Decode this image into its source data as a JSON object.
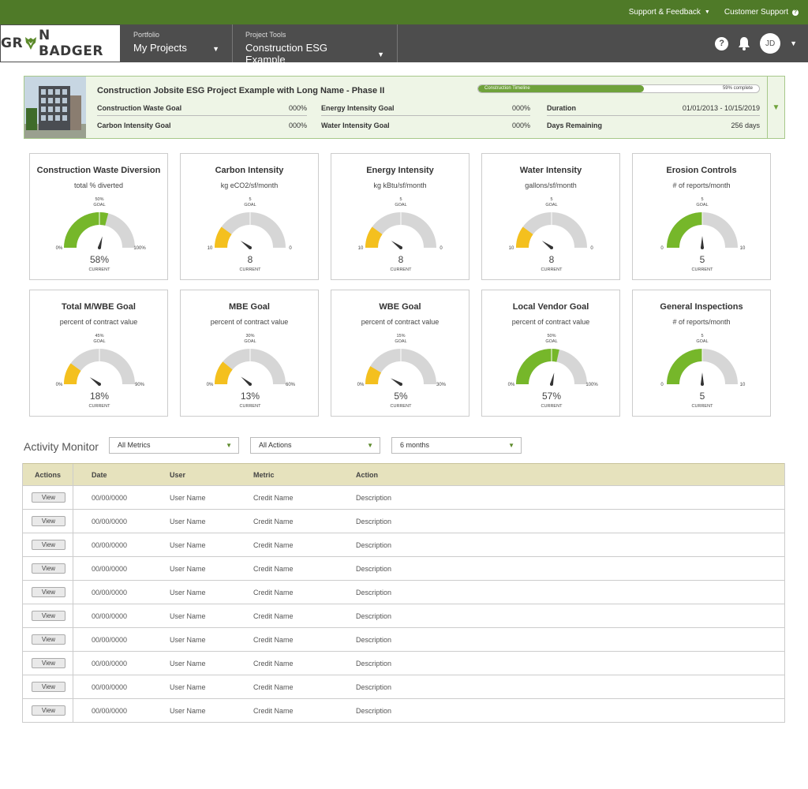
{
  "topbar": {
    "support_feedback": "Support & Feedback",
    "customer_support": "Customer Support"
  },
  "nav": {
    "logo": {
      "left": "GR",
      "right": "N BADGER"
    },
    "portfolio_label": "Portfolio",
    "portfolio_value": "My Projects",
    "tools_label": "Project Tools",
    "tools_value": "Construction ESG Example",
    "avatar": "JD",
    "help": "?"
  },
  "project": {
    "title": "Construction Jobsite ESG Project Example with Long Name - Phase II",
    "timeline_label": "Construction Timeline",
    "timeline_pct_text": "59% complete",
    "timeline_fraction": 0.59,
    "rows": [
      {
        "label": "Construction Waste Goal",
        "value": "000%"
      },
      {
        "label": "Carbon Intensity Goal",
        "value": "000%"
      },
      {
        "label": "Energy Intensity Goal",
        "value": "000%"
      },
      {
        "label": "Water Intensity Goal",
        "value": "000%"
      },
      {
        "label": "Duration",
        "value": "01/01/2013 - 10/15/2019"
      },
      {
        "label": "Days Remaining",
        "value": "256 days"
      }
    ]
  },
  "colors": {
    "green": "#76b72a",
    "yellow": "#f4c01e",
    "track": "#d6d6d6",
    "brand": "#4f7a28"
  },
  "gauges": [
    {
      "title": "Construction Waste Diversion",
      "subtitle": "total % diverted",
      "goal_text": "50%",
      "goal_label": "GOAL",
      "min": "0%",
      "max": "100%",
      "current": "58%",
      "current_label": "CURRENT",
      "fraction": 0.58,
      "goal_fraction": 0.5,
      "color": "green"
    },
    {
      "title": "Carbon Intensity",
      "subtitle": "kg eCO2/sf/month",
      "goal_text": "5",
      "goal_label": "GOAL",
      "min": "10",
      "max": "0",
      "current": "8",
      "current_label": "CURRENT",
      "fraction": 0.2,
      "goal_fraction": 0.5,
      "color": "yellow"
    },
    {
      "title": "Energy Intensity",
      "subtitle": "kg kBtu/sf/month",
      "goal_text": "5",
      "goal_label": "GOAL",
      "min": "10",
      "max": "0",
      "current": "8",
      "current_label": "CURRENT",
      "fraction": 0.2,
      "goal_fraction": 0.5,
      "color": "yellow"
    },
    {
      "title": "Water Intensity",
      "subtitle": "gallons/sf/month",
      "goal_text": "5",
      "goal_label": "GOAL",
      "min": "10",
      "max": "0",
      "current": "8",
      "current_label": "CURRENT",
      "fraction": 0.2,
      "goal_fraction": 0.5,
      "color": "yellow"
    },
    {
      "title": "Erosion Controls",
      "subtitle": "# of reports/month",
      "goal_text": "5",
      "goal_label": "GOAL",
      "min": "0",
      "max": "10",
      "current": "5",
      "current_label": "CURRENT",
      "fraction": 0.5,
      "goal_fraction": 0.5,
      "color": "green"
    },
    {
      "title": "Total M/WBE Goal",
      "subtitle": "percent of contract value",
      "goal_text": "45%",
      "goal_label": "GOAL",
      "min": "0%",
      "max": "90%",
      "current": "18%",
      "current_label": "CURRENT",
      "fraction": 0.2,
      "goal_fraction": 0.5,
      "color": "yellow"
    },
    {
      "title": "MBE Goal",
      "subtitle": "percent of contract value",
      "goal_text": "30%",
      "goal_label": "GOAL",
      "min": "0%",
      "max": "60%",
      "current": "13%",
      "current_label": "CURRENT",
      "fraction": 0.22,
      "goal_fraction": 0.5,
      "color": "yellow"
    },
    {
      "title": "WBE Goal",
      "subtitle": "percent of contract value",
      "goal_text": "15%",
      "goal_label": "GOAL",
      "min": "0%",
      "max": "30%",
      "current": "5%",
      "current_label": "CURRENT",
      "fraction": 0.17,
      "goal_fraction": 0.5,
      "color": "yellow"
    },
    {
      "title": "Local Vendor Goal",
      "subtitle": "percent of contract value",
      "goal_text": "50%",
      "goal_label": "GOAL",
      "min": "0%",
      "max": "100%",
      "current": "57%",
      "current_label": "CURRENT",
      "fraction": 0.57,
      "goal_fraction": 0.5,
      "color": "green"
    },
    {
      "title": "General Inspections",
      "subtitle": "# of reports/month",
      "goal_text": "5",
      "goal_label": "GOAL",
      "min": "0",
      "max": "10",
      "current": "5",
      "current_label": "CURRENT",
      "fraction": 0.5,
      "goal_fraction": 0.5,
      "color": "green"
    }
  ],
  "activity": {
    "title": "Activity Monitor",
    "filters": [
      "All Metrics",
      "All Actions",
      "6 months"
    ],
    "headers": {
      "actions": "Actions",
      "date": "Date",
      "user": "User",
      "metric": "Metric",
      "action": "Action"
    },
    "view_label": "View",
    "rows": [
      {
        "date": "00/00/0000",
        "user": "User Name",
        "metric": "Credit Name",
        "action": "Description"
      },
      {
        "date": "00/00/0000",
        "user": "User Name",
        "metric": "Credit Name",
        "action": "Description"
      },
      {
        "date": "00/00/0000",
        "user": "User Name",
        "metric": "Credit Name",
        "action": "Description"
      },
      {
        "date": "00/00/0000",
        "user": "User Name",
        "metric": "Credit Name",
        "action": "Description"
      },
      {
        "date": "00/00/0000",
        "user": "User Name",
        "metric": "Credit Name",
        "action": "Description"
      },
      {
        "date": "00/00/0000",
        "user": "User Name",
        "metric": "Credit Name",
        "action": "Description"
      },
      {
        "date": "00/00/0000",
        "user": "User Name",
        "metric": "Credit Name",
        "action": "Description"
      },
      {
        "date": "00/00/0000",
        "user": "User Name",
        "metric": "Credit Name",
        "action": "Description"
      },
      {
        "date": "00/00/0000",
        "user": "User Name",
        "metric": "Credit Name",
        "action": "Description"
      },
      {
        "date": "00/00/0000",
        "user": "User Name",
        "metric": "Credit Name",
        "action": "Description"
      }
    ]
  }
}
